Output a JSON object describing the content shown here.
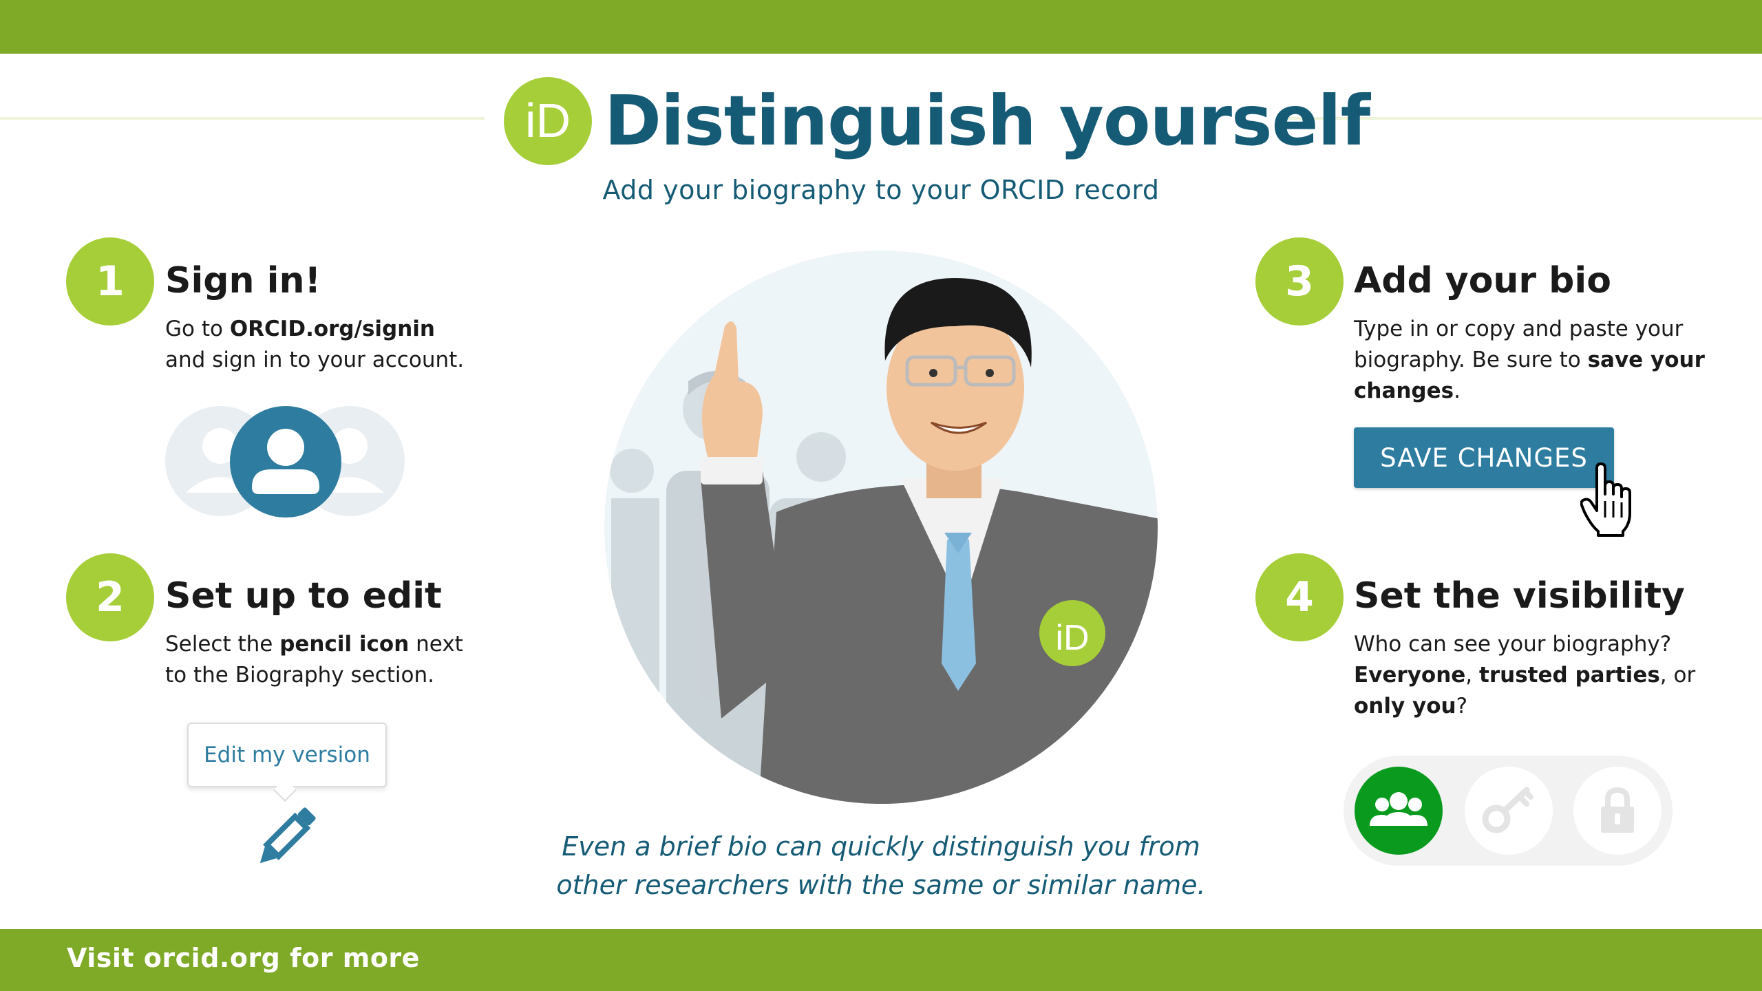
{
  "header": {
    "logo_text": "iD",
    "title": "Distinguish yourself",
    "subtitle": "Add your biography to your ORCID record"
  },
  "steps": [
    {
      "number": "1",
      "title": "Sign in!",
      "body_parts": [
        "Go to ",
        "ORCID.org/signin",
        " and sign in to your account."
      ]
    },
    {
      "number": "2",
      "title": "Set up to edit",
      "body_parts": [
        "Select the ",
        "pencil icon",
        " next to the Biography section."
      ],
      "tooltip": "Edit my version"
    },
    {
      "number": "3",
      "title": "Add your bio",
      "body_parts": [
        "Type in or copy and paste your biography. Be sure to ",
        "save your changes",
        "."
      ],
      "button": "SAVE CHANGES"
    },
    {
      "number": "4",
      "title": "Set the visibility",
      "body_parts": [
        "Who can see your biography? ",
        "Everyone",
        ", ",
        "trusted parties",
        ", or ",
        "only you",
        "?"
      ],
      "visibility_options": [
        "everyone",
        "trusted-parties",
        "only-you"
      ],
      "selected_visibility": "everyone"
    }
  ],
  "illustration": {
    "badge_text": "iD"
  },
  "caption": {
    "line1": "Even a brief bio can quickly distinguish you from",
    "line2": "other researchers with the same or similar name."
  },
  "footer": {
    "text": "Visit orcid.org for more"
  },
  "colors": {
    "brand_green": "#A6CE39",
    "bar_green": "#7FAA28",
    "title_blue": "#165B76",
    "button_blue": "#2E7DA1",
    "everyone_green": "#0A9B1E"
  }
}
